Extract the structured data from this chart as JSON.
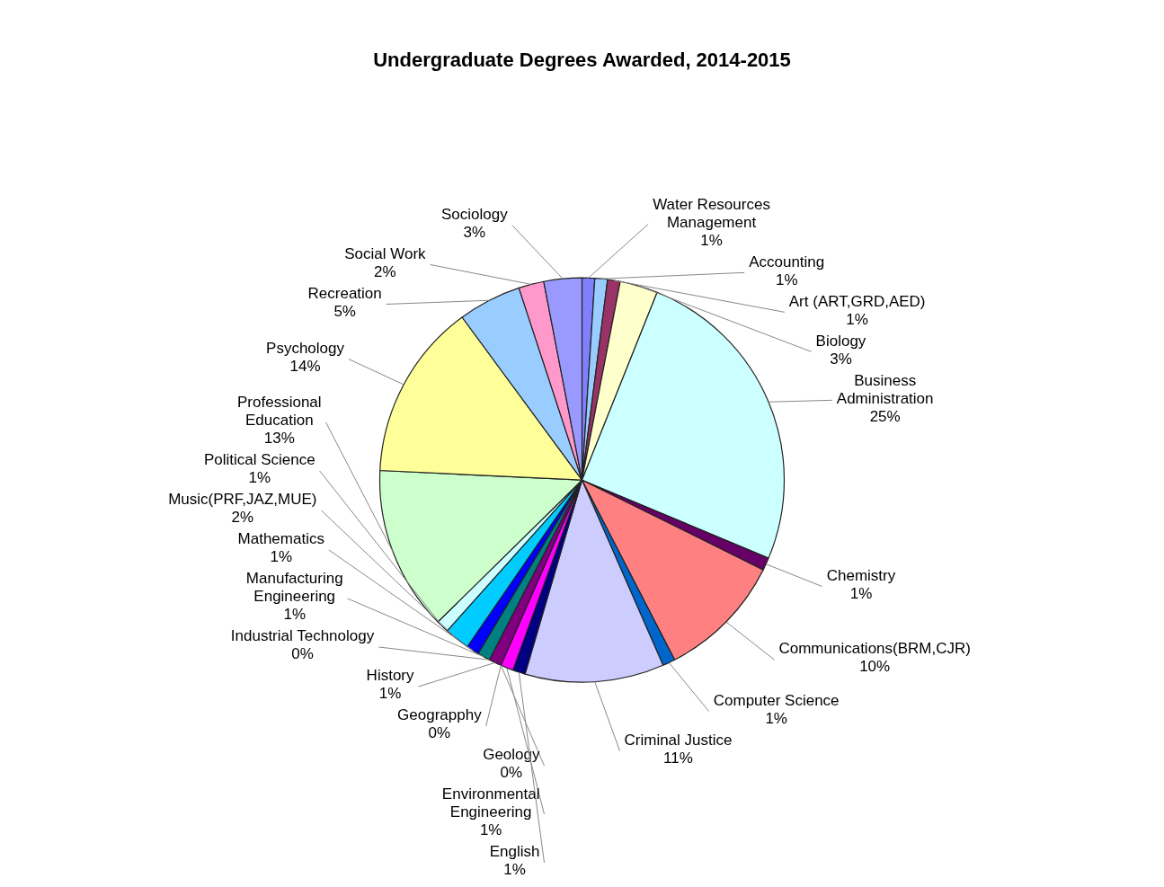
{
  "chart_data": {
    "type": "pie",
    "title": "Undergraduate Degrees Awarded, 2014-2015",
    "categories": [
      "Water Resources Management",
      "Accounting",
      "Art (ART,GRD,AED)",
      "Biology",
      "Business Administration",
      "Chemistry",
      "Communications(BRM,CJR)",
      "Computer Science",
      "Criminal Justice",
      "English",
      "Environmental Engineering",
      "Geograpphy",
      "Geology",
      "History",
      "Industrial Technology",
      "Manufacturing Engineering",
      "Mathematics",
      "Music(PRF,JAZ,MUE)",
      "Political Science",
      "Professional Education",
      "Psychology",
      "Recreation",
      "Social Work",
      "Sociology"
    ],
    "values": [
      1,
      1,
      1,
      3,
      25,
      1,
      10,
      1,
      11,
      1,
      1,
      0,
      0,
      1,
      0,
      1,
      1,
      2,
      1,
      13,
      14,
      5,
      2,
      3
    ],
    "value_labels": [
      "1%",
      "1%",
      "1%",
      "3%",
      "25%",
      "1%",
      "10%",
      "1%",
      "11%",
      "1%",
      "1%",
      "0%",
      "0%",
      "1%",
      "0%",
      "1%",
      "1%",
      "2%",
      "1%",
      "13%",
      "14%",
      "5%",
      "2%",
      "3%"
    ],
    "colors": [
      "#8080ff",
      "#99ccff",
      "#993366",
      "#ffffcc",
      "#ccffff",
      "#660066",
      "#ff8080",
      "#0066cc",
      "#ccccff",
      "#000080",
      "#ff00ff",
      "#ffff00",
      "#00ffff",
      "#800080",
      "#800000",
      "#008080",
      "#0000ff",
      "#00ccff",
      "#ccffff",
      "#ccffcc",
      "#ffff99",
      "#99ccff",
      "#ff99cc",
      "#9999ff"
    ]
  }
}
